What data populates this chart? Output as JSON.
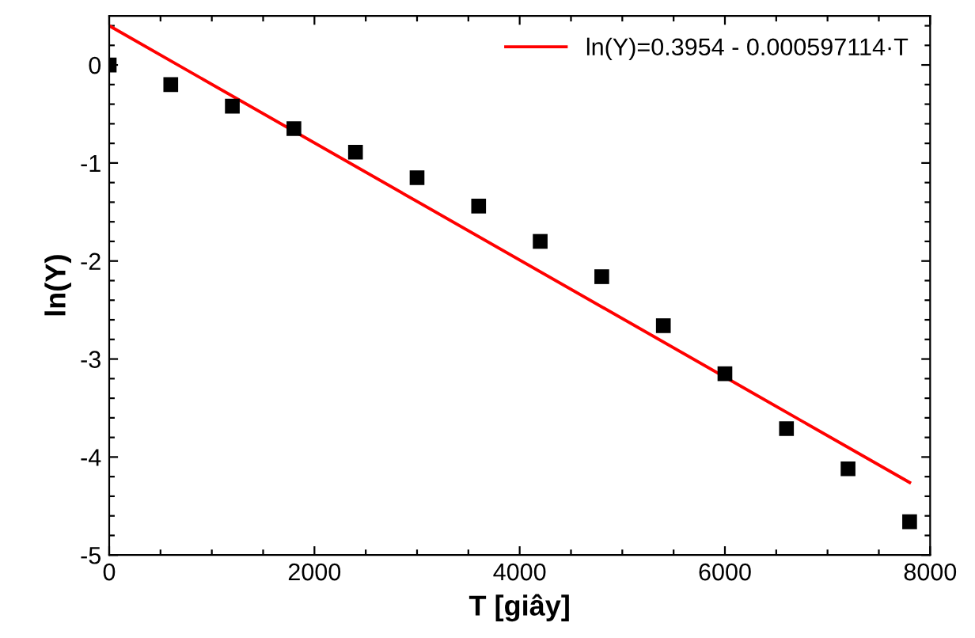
{
  "chart_data": {
    "type": "scatter",
    "xlabel": "T [giây]",
    "ylabel": "ln(Y)",
    "xlim": [
      0,
      8000
    ],
    "ylim": [
      -5,
      0.5
    ],
    "xticks": [
      0,
      {
        "value": 500,
        "label": null
      },
      {
        "value": 1000,
        "label": null
      },
      {
        "value": 1500,
        "label": null
      },
      2000,
      {
        "value": 2500,
        "label": null
      },
      {
        "value": 3000,
        "label": null
      },
      {
        "value": 3500,
        "label": null
      },
      4000,
      {
        "value": 4500,
        "label": null
      },
      {
        "value": 5000,
        "label": null
      },
      {
        "value": 5500,
        "label": null
      },
      6000,
      {
        "value": 6500,
        "label": null
      },
      {
        "value": 7000,
        "label": null
      },
      {
        "value": 7500,
        "label": null
      },
      8000
    ],
    "yticks": [
      {
        "value": -5,
        "label": "-5"
      },
      {
        "value": -4.8,
        "label": null
      },
      {
        "value": -4.6,
        "label": null
      },
      {
        "value": -4.4,
        "label": null
      },
      {
        "value": -4.2,
        "label": null
      },
      {
        "value": -4,
        "label": "-4"
      },
      {
        "value": -3.8,
        "label": null
      },
      {
        "value": -3.6,
        "label": null
      },
      {
        "value": -3.4,
        "label": null
      },
      {
        "value": -3.2,
        "label": null
      },
      {
        "value": -3,
        "label": "-3"
      },
      {
        "value": -2.8,
        "label": null
      },
      {
        "value": -2.6,
        "label": null
      },
      {
        "value": -2.4,
        "label": null
      },
      {
        "value": -2.2,
        "label": null
      },
      {
        "value": -2,
        "label": "-2"
      },
      {
        "value": -1.8,
        "label": null
      },
      {
        "value": -1.6,
        "label": null
      },
      {
        "value": -1.4,
        "label": null
      },
      {
        "value": -1.2,
        "label": null
      },
      {
        "value": -1,
        "label": "-1"
      },
      {
        "value": -0.8,
        "label": null
      },
      {
        "value": -0.6,
        "label": null
      },
      {
        "value": -0.4,
        "label": null
      },
      {
        "value": -0.2,
        "label": null
      },
      0,
      {
        "value": 0.2,
        "label": null
      },
      {
        "value": 0.4,
        "label": null
      }
    ],
    "grid": false,
    "legend": "top right",
    "series": [
      {
        "color": "#000000",
        "marker": "square",
        "x": [
          0,
          600,
          1200,
          1800,
          2400,
          3000,
          3600,
          4200,
          4800,
          5400,
          6000,
          6600,
          7200,
          7800
        ],
        "values": [
          0,
          -0.2,
          -0.42,
          -0.65,
          -0.89,
          -1.15,
          -1.44,
          -1.8,
          -2.16,
          -2.66,
          -3.15,
          -3.71,
          -4.12,
          -4.66
        ]
      },
      {
        "type": "line",
        "name": "ln(Y)=0.3954 - 0.000597114·T",
        "color": "#ff0000",
        "marker": "none",
        "line_style": "solid",
        "x": [
          0,
          7800
        ],
        "values": [
          0.4,
          -4.26
        ]
      }
    ]
  }
}
